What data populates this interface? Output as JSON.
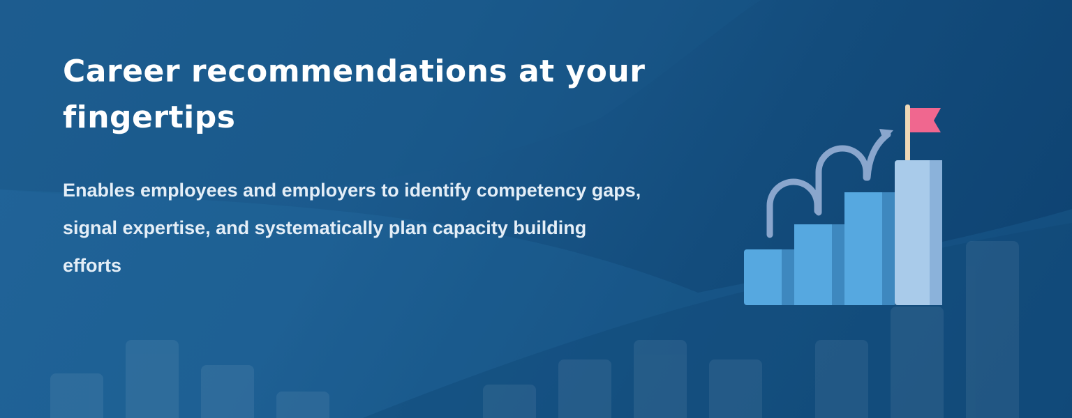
{
  "banner": {
    "headline": "Career recommendations at your fingertips",
    "subtext": "Enables employees and employers to identify competency gaps, signal expertise, and systematically plan capacity building efforts"
  },
  "illustration": {
    "icon": "career-steps-flag-icon",
    "step_colors": [
      "#56a8e0",
      "#56a8e0",
      "#56a8e0",
      "#a9cbea"
    ],
    "flag_color": "#f0678f",
    "arrow_color": "#8aa6cd"
  },
  "colors": {
    "background_left": "#1f5f93",
    "background_right": "#0d4170",
    "text": "#ffffff"
  }
}
